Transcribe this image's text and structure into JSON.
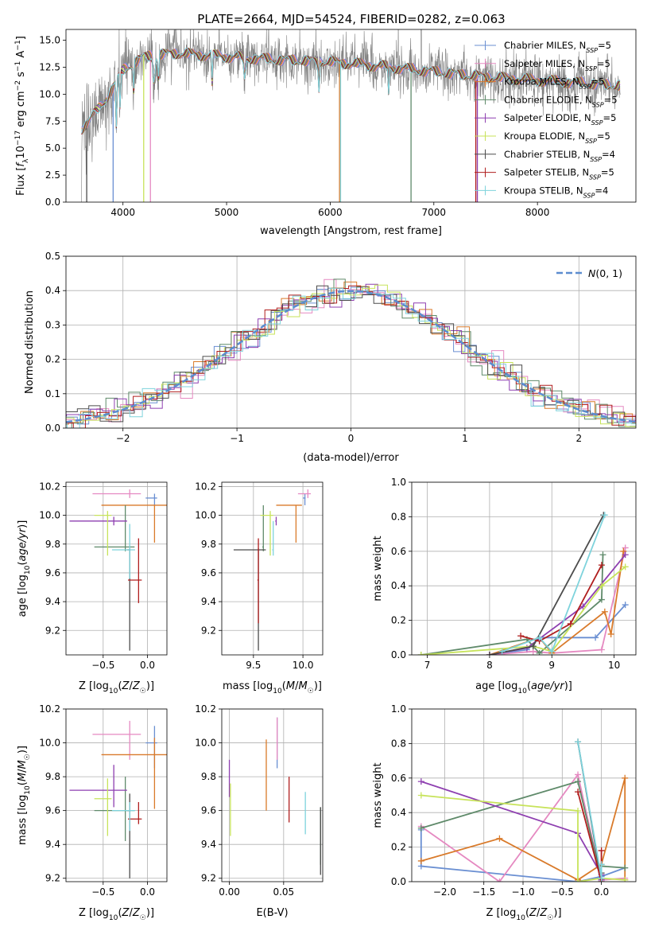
{
  "title": "PLATE=2664, MJD=54524, FIBERID=0282, z=0.063",
  "colors": [
    "#6a8fd2",
    "#e589c1",
    "#d97a2a",
    "#5f8a6a",
    "#8e3fb0",
    "#c7e35a",
    "#4c4c4c",
    "#b01e1e",
    "#7ed3dc"
  ],
  "data_color": "#808080",
  "chart_data": [
    {
      "id": "spectrum",
      "type": "line",
      "title": "PLATE=2664, MJD=54524, FIBERID=0282, z=0.063",
      "xlabel": "wavelength [Angstrom, rest frame]",
      "ylabel": "Flux [f_λ 10^-17 erg cm^-2 s^-1 A^-1]",
      "xlim": [
        3450,
        8950
      ],
      "ylim": [
        0,
        16
      ],
      "xticks": [
        4000,
        5000,
        6000,
        7000,
        8000
      ],
      "yticks": [
        0.0,
        2.5,
        5.0,
        7.5,
        10.0,
        12.5,
        15.0
      ],
      "legend_position": "upper right",
      "series": [
        {
          "name": "Chabrier MILES, N_SSP=5"
        },
        {
          "name": "Salpeter MILES, N_SSP=5"
        },
        {
          "name": "Kroupa MILES, N_SSP=5"
        },
        {
          "name": "Chabrier ELODIE, N_SSP=5"
        },
        {
          "name": "Salpeter ELODIE, N_SSP=5"
        },
        {
          "name": "Kroupa ELODIE, N_SSP=5"
        },
        {
          "name": "Chabrier STELIB, N_SSP=4"
        },
        {
          "name": "Salpeter STELIB, N_SSP=5"
        },
        {
          "name": "Kroupa STELIB, N_SSP=4"
        }
      ],
      "continuum": {
        "x": [
          3600,
          3800,
          4000,
          4200,
          4500,
          5000,
          5500,
          6000,
          6500,
          7000,
          7500,
          8000,
          8500,
          8800
        ],
        "y": [
          6.8,
          9.0,
          12.2,
          13.5,
          13.8,
          13.5,
          13.2,
          13.0,
          12.6,
          12.1,
          11.6,
          11.3,
          11.0,
          10.8
        ]
      }
    },
    {
      "id": "residuals",
      "type": "histogram",
      "xlabel": "(data-model)/error",
      "ylabel": "Normed distribution",
      "xlim": [
        -2.5,
        2.5
      ],
      "ylim": [
        0,
        0.5
      ],
      "xticks": [
        -2,
        -1,
        0,
        1,
        2
      ],
      "yticks": [
        0.0,
        0.1,
        0.2,
        0.3,
        0.4,
        0.5
      ],
      "legend": [
        "N(0,1)"
      ],
      "legend_position": "upper right",
      "reference": "N(0,1)"
    },
    {
      "id": "age-vs-Z",
      "type": "errorbar",
      "xlabel": "Z [log10(Z/Z☉)]",
      "ylabel": "age  [log10(age/yr)]",
      "xlim": [
        -0.92,
        0.22
      ],
      "ylim": [
        9.03,
        10.23
      ],
      "xticks": [
        -0.5,
        0.0
      ],
      "yticks": [
        9.2,
        9.4,
        9.6,
        9.8,
        10.0,
        10.2
      ],
      "points": [
        {
          "x": 0.08,
          "y": 10.12,
          "xerr": 0.1,
          "yerr": [
            0.05,
            0.03
          ]
        },
        {
          "x": -0.2,
          "y": 10.15,
          "xerr": 0.42,
          "yerr": [
            0.03,
            0.03
          ]
        },
        {
          "x": 0.08,
          "y": 10.07,
          "xerr": 0.6,
          "yerr": [
            0.26,
            0.0
          ]
        },
        {
          "x": -0.25,
          "y": 9.78,
          "xerr": 0.35,
          "yerr": [
            0.03,
            0.29
          ]
        },
        {
          "x": -0.38,
          "y": 9.96,
          "xerr": 0.5,
          "yerr": [
            0.03,
            0.03
          ]
        },
        {
          "x": -0.45,
          "y": 10.0,
          "xerr": 0.15,
          "yerr": [
            0.28,
            0.03
          ]
        },
        {
          "x": -0.2,
          "y": 9.76,
          "xerr": 0.03,
          "yerr": [
            0.7,
            0.01
          ]
        },
        {
          "x": -0.1,
          "y": 9.55,
          "xerr": 0.12,
          "yerr": [
            0.16,
            0.29
          ]
        },
        {
          "x": -0.2,
          "y": 9.76,
          "xerr": 0.2,
          "yerr": [
            0.2,
            0.18
          ]
        }
      ]
    },
    {
      "id": "age-vs-mass",
      "type": "errorbar",
      "xlabel": "mass [log10(M/M☉)]",
      "ylabel": "",
      "xlim": [
        9.18,
        10.2
      ],
      "ylim": [
        9.03,
        10.23
      ],
      "xticks": [
        9.5,
        10.0
      ],
      "yticks": [
        9.2,
        9.4,
        9.6,
        9.8,
        10.0,
        10.2
      ],
      "points": [
        {
          "x": 10.02,
          "y": 10.12,
          "xerr": 0.02,
          "yerr": [
            0.05,
            0.03
          ]
        },
        {
          "x": 10.05,
          "y": 10.15,
          "xerr": 0.1,
          "yerr": [
            0.03,
            0.03
          ]
        },
        {
          "x": 9.93,
          "y": 10.07,
          "xerr": 0.2,
          "yerr": [
            0.26,
            0.0
          ]
        },
        {
          "x": 9.6,
          "y": 9.78,
          "xerr": 0.01,
          "yerr": [
            0.03,
            0.29
          ]
        },
        {
          "x": 9.73,
          "y": 9.96,
          "xerr": 0.01,
          "yerr": [
            0.03,
            0.03
          ]
        },
        {
          "x": 9.67,
          "y": 10.0,
          "xerr": 0.1,
          "yerr": [
            0.28,
            0.03
          ]
        },
        {
          "x": 9.55,
          "y": 9.76,
          "xerr": 0.25,
          "yerr": [
            0.7,
            0.01
          ]
        },
        {
          "x": 9.55,
          "y": 9.55,
          "xerr": 0.01,
          "yerr": [
            0.3,
            0.29
          ]
        },
        {
          "x": 9.7,
          "y": 9.76,
          "xerr": 0.01,
          "yerr": [
            0.04,
            0.2
          ]
        }
      ]
    },
    {
      "id": "weight-vs-age",
      "type": "line",
      "xlabel": "age  [log10(age/yr)]",
      "ylabel": "mass weight",
      "xlim": [
        6.75,
        10.35
      ],
      "ylim": [
        0,
        1
      ],
      "xticks": [
        7,
        8,
        9,
        10
      ],
      "yticks": [
        0.0,
        0.2,
        0.4,
        0.6,
        0.8,
        1.0
      ],
      "grid": true,
      "series": [
        {
          "x": [
            8.0,
            8.6,
            8.8,
            9.7,
            10.18
          ],
          "y": [
            0.0,
            0.03,
            0.1,
            0.1,
            0.29
          ]
        },
        {
          "x": [
            8.0,
            8.7,
            9.0,
            9.8,
            10.18
          ],
          "y": [
            0.0,
            0.02,
            0.01,
            0.03,
            0.62
          ]
        },
        {
          "x": [
            8.0,
            8.8,
            9.0,
            9.85,
            9.95,
            10.15
          ],
          "y": [
            0.0,
            0.1,
            0.01,
            0.25,
            0.12,
            0.6
          ]
        },
        {
          "x": [
            6.9,
            8.6,
            8.8,
            9.8,
            9.82
          ],
          "y": [
            0.0,
            0.09,
            0.01,
            0.32,
            0.58
          ]
        },
        {
          "x": [
            8.0,
            8.6,
            9.5,
            10.18
          ],
          "y": [
            0.0,
            0.04,
            0.28,
            0.58
          ]
        },
        {
          "x": [
            6.9,
            8.7,
            9.0,
            9.8,
            10.18
          ],
          "y": [
            0.0,
            0.05,
            0.02,
            0.4,
            0.51
          ]
        },
        {
          "x": [
            8.0,
            8.7,
            9.83
          ],
          "y": [
            0.0,
            0.05,
            0.81
          ]
        },
        {
          "x": [
            8.5,
            8.8,
            9.3,
            9.8
          ],
          "y": [
            0.11,
            0.08,
            0.18,
            0.52
          ]
        },
        {
          "x": [
            8.2,
            8.8,
            9.0,
            9.85
          ],
          "y": [
            0.02,
            0.1,
            0.02,
            0.81
          ]
        }
      ]
    },
    {
      "id": "mass-vs-Z",
      "type": "errorbar",
      "xlabel": "Z [log10(Z/Z☉)]",
      "ylabel": "mass [log10(M/M☉)]",
      "xlim": [
        -0.92,
        0.22
      ],
      "ylim": [
        9.18,
        10.2
      ],
      "xticks": [
        -0.5,
        0.0
      ],
      "yticks": [
        9.2,
        9.4,
        9.6,
        9.8,
        10.0,
        10.2
      ],
      "points": [
        {
          "x": 0.08,
          "y": 10.0,
          "xerr": 0.1,
          "yerr": [
            0.15,
            0.1
          ]
        },
        {
          "x": -0.2,
          "y": 10.05,
          "xerr": 0.42,
          "yerr": [
            0.15,
            0.08
          ]
        },
        {
          "x": 0.08,
          "y": 9.93,
          "xerr": 0.6,
          "yerr": [
            0.32,
            0.1
          ]
        },
        {
          "x": -0.25,
          "y": 9.6,
          "xerr": 0.35,
          "yerr": [
            0.18,
            0.2
          ]
        },
        {
          "x": -0.38,
          "y": 9.72,
          "xerr": 0.5,
          "yerr": [
            0.1,
            0.15
          ]
        },
        {
          "x": -0.45,
          "y": 9.67,
          "xerr": 0.15,
          "yerr": [
            0.22,
            0.12
          ]
        },
        {
          "x": -0.2,
          "y": 9.6,
          "xerr": 0.03,
          "yerr": [
            0.4,
            0.1
          ]
        },
        {
          "x": -0.1,
          "y": 9.55,
          "xerr": 0.12,
          "yerr": [
            0.03,
            0.1
          ]
        },
        {
          "x": -0.2,
          "y": 9.6,
          "xerr": 0.2,
          "yerr": [
            0.12,
            0.05
          ]
        }
      ]
    },
    {
      "id": "mass-vs-ebv",
      "type": "errorbar",
      "xlabel": "E(B-V)",
      "ylabel": "",
      "xlim": [
        -0.007,
        0.086
      ],
      "ylim": [
        9.18,
        10.2
      ],
      "xticks": [
        0.0,
        0.05
      ],
      "yticks": [
        9.2,
        9.4,
        9.6,
        9.8,
        10.0,
        10.2
      ],
      "points": [
        {
          "x": 0.044,
          "y": 10.0,
          "xerr": 0.0,
          "yerr": [
            0.15,
            0.15
          ]
        },
        {
          "x": 0.044,
          "y": 10.05,
          "xerr": 0.0,
          "yerr": [
            0.15,
            0.1
          ]
        },
        {
          "x": 0.034,
          "y": 9.8,
          "xerr": 0.0,
          "yerr": [
            0.2,
            0.22
          ]
        },
        {
          "x": 0.084,
          "y": 9.38,
          "xerr": 0.0,
          "yerr": [
            0.1,
            0.24
          ]
        },
        {
          "x": 0.0,
          "y": 9.78,
          "xerr": 0.0,
          "yerr": [
            0.1,
            0.12
          ]
        },
        {
          "x": 0.001,
          "y": 9.6,
          "xerr": 0.0,
          "yerr": [
            0.15,
            0.16
          ]
        },
        {
          "x": 0.084,
          "y": 9.42,
          "xerr": 0.0,
          "yerr": [
            0.2,
            0.2
          ]
        },
        {
          "x": 0.055,
          "y": 9.66,
          "xerr": 0.0,
          "yerr": [
            0.13,
            0.14
          ]
        },
        {
          "x": 0.07,
          "y": 9.56,
          "xerr": 0.0,
          "yerr": [
            0.1,
            0.15
          ]
        }
      ]
    },
    {
      "id": "weight-vs-Z",
      "type": "line",
      "xlabel": "Z [log10(Z/Z☉)]",
      "ylabel": "mass weight",
      "xlim": [
        -2.42,
        0.44
      ],
      "ylim": [
        0,
        1
      ],
      "xticks": [
        -2.0,
        -1.5,
        -1.0,
        -0.5,
        0.0
      ],
      "yticks": [
        0.0,
        0.2,
        0.4,
        0.6,
        0.8,
        1.0
      ],
      "grid": true,
      "series": [
        {
          "x": [
            -2.3,
            -2.3,
            -0.3,
            0.0,
            0.3
          ],
          "y": [
            0.3,
            0.09,
            0.0,
            0.03,
            0.08
          ]
        },
        {
          "x": [
            -2.3,
            -1.3,
            -0.3,
            0.0,
            0.3
          ],
          "y": [
            0.32,
            0.0,
            0.62,
            0.01,
            0.02
          ]
        },
        {
          "x": [
            -2.3,
            -1.3,
            -0.3,
            0.0,
            0.3,
            0.3
          ],
          "y": [
            0.12,
            0.25,
            0.01,
            0.1,
            0.6,
            0.01
          ]
        },
        {
          "x": [
            -2.3,
            -0.3,
            0.0,
            0.0,
            0.3
          ],
          "y": [
            0.31,
            0.58,
            0.01,
            0.09,
            0.08
          ]
        },
        {
          "x": [
            -2.3,
            -0.3,
            0.0,
            0.0
          ],
          "y": [
            0.58,
            0.28,
            0.04,
            0.01
          ]
        },
        {
          "x": [
            -2.3,
            -0.3,
            -0.3,
            0.0,
            0.3
          ],
          "y": [
            0.5,
            0.41,
            0.0,
            0.02,
            0.01
          ]
        },
        {
          "x": [
            -0.3,
            0.0,
            0.0
          ],
          "y": [
            0.81,
            0.0,
            0.05
          ]
        },
        {
          "x": [
            -0.3,
            0.0,
            0.0
          ],
          "y": [
            0.52,
            0.0,
            0.18
          ]
        },
        {
          "x": [
            -0.3,
            0.0,
            0.0
          ],
          "y": [
            0.81,
            0.02,
            0.1
          ]
        }
      ]
    }
  ]
}
